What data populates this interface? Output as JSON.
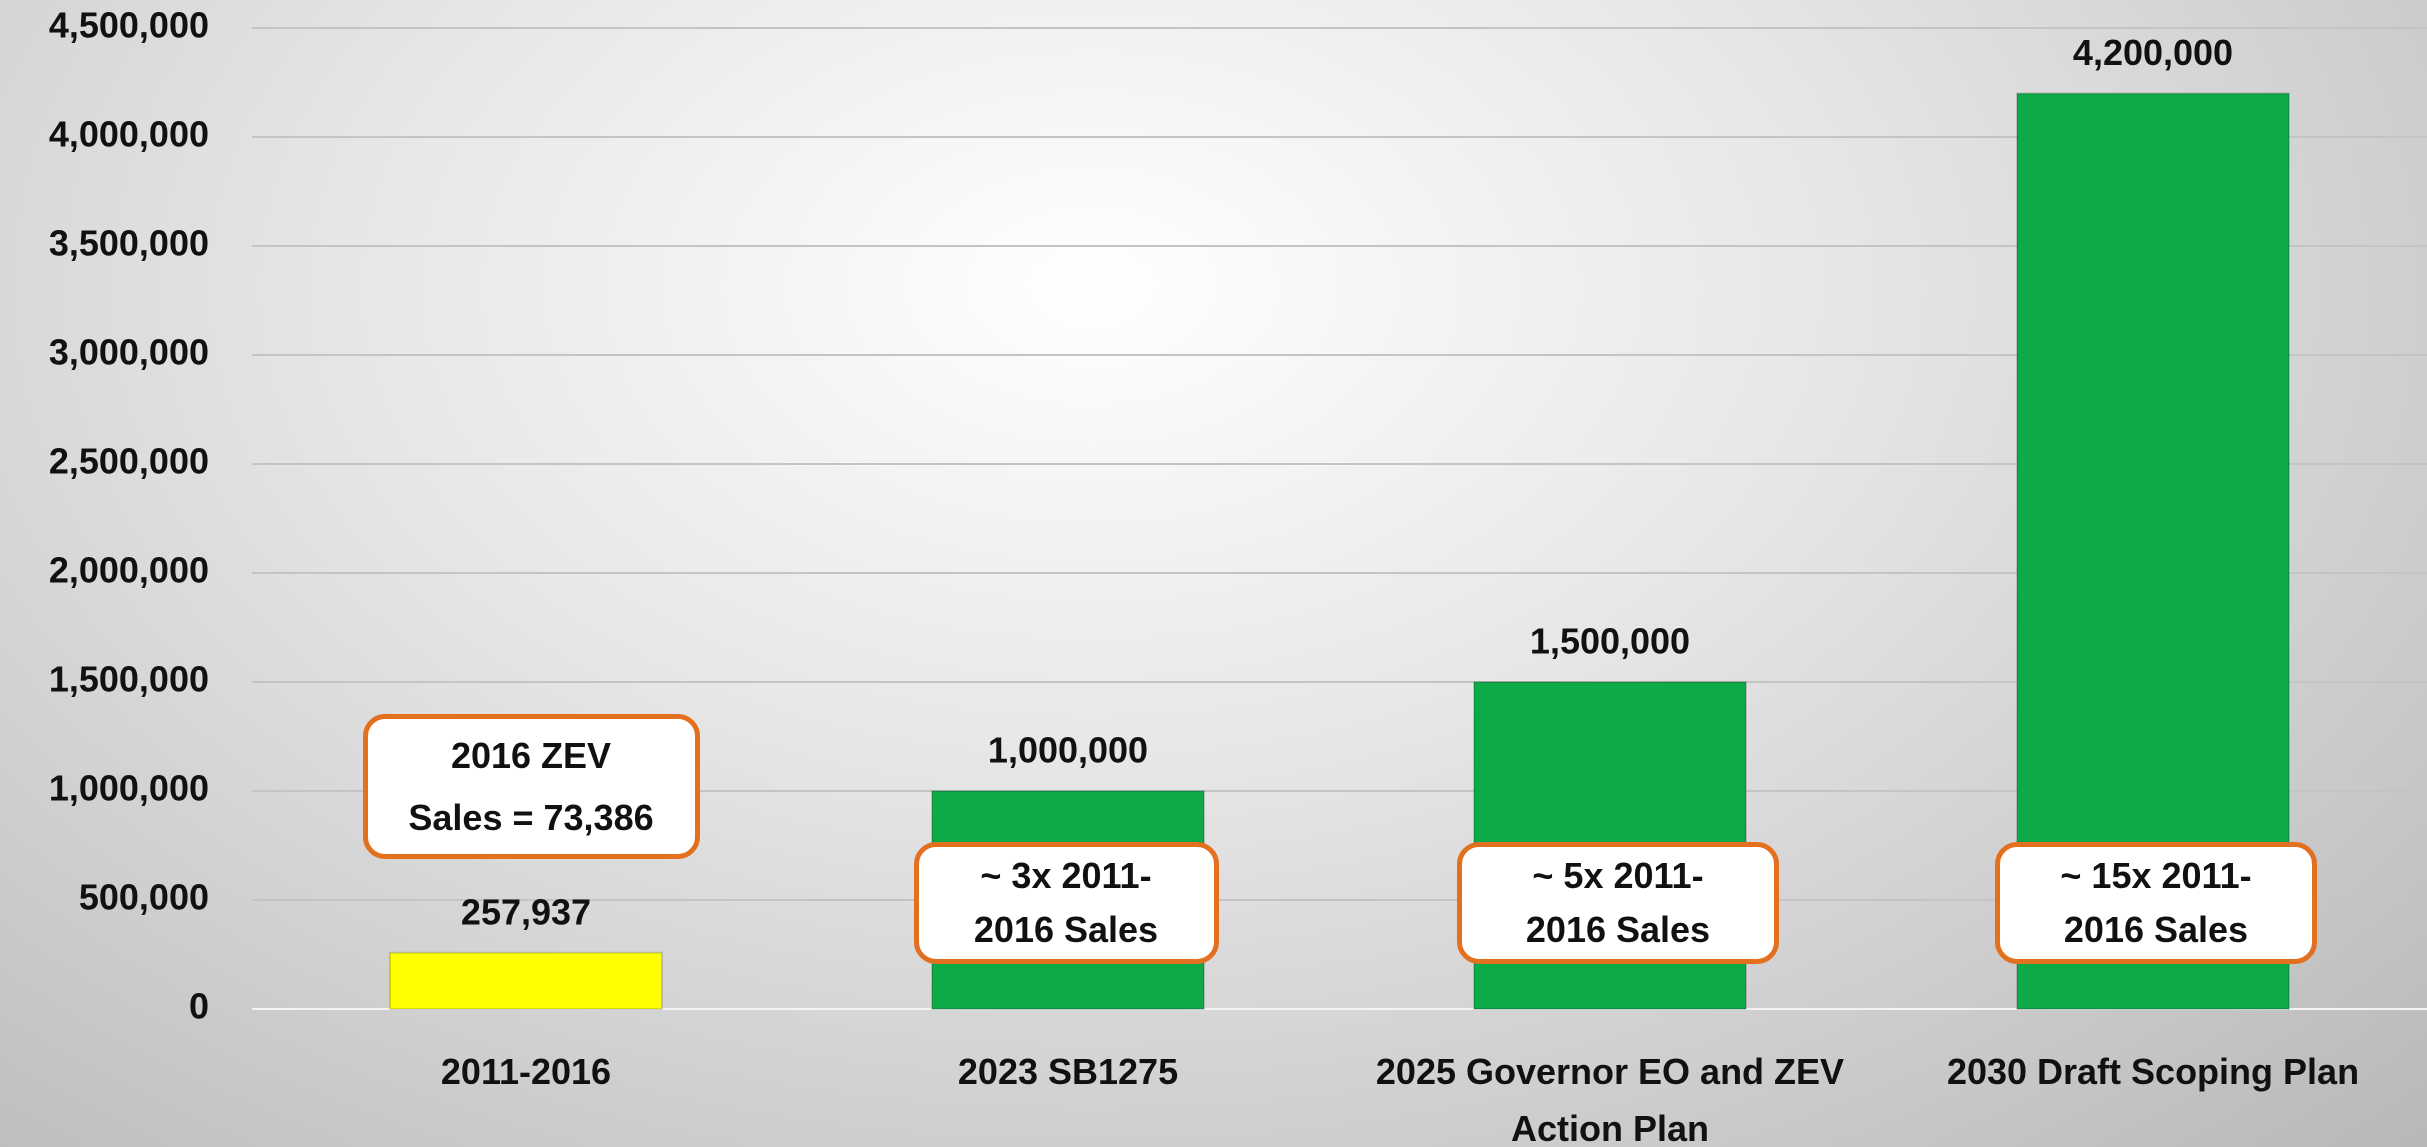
{
  "chart_data": {
    "type": "bar",
    "categories": [
      "2011-2016",
      "2023 SB1275",
      "2025 Governor EO and ZEV Action Plan",
      "2030 Draft Scoping Plan"
    ],
    "values": [
      257937,
      1000000,
      1500000,
      4200000
    ],
    "value_labels": [
      "257,937",
      "1,000,000",
      "1,500,000",
      "4,200,000"
    ],
    "colors": [
      "#ffff00",
      "#0daa48",
      "#0daa48",
      "#0daa48"
    ],
    "ylim": [
      0,
      4500000
    ],
    "yticks": [
      0,
      {
        "value": 500000,
        "label": "500,000"
      },
      {
        "value": 1000000,
        "label": "1,000,000"
      },
      {
        "value": 1500000,
        "label": "1,500,000"
      },
      {
        "value": 2000000,
        "label": "2,000,000"
      },
      {
        "value": 2500000,
        "label": "2,500,000"
      },
      {
        "value": 3000000,
        "label": "3,000,000"
      },
      {
        "value": 3500000,
        "label": "3,500,000"
      },
      {
        "value": 4000000,
        "label": "4,000,000"
      },
      {
        "value": 4500000,
        "label": "4,500,000"
      }
    ],
    "grid": true,
    "annotations": [
      [
        "2016 ZEV",
        "Sales = 73,386"
      ],
      [
        "~ 3x 2011-",
        "2016 Sales"
      ],
      [
        "~ 5x 2011-",
        "2016 Sales"
      ],
      [
        "~ 15x 2011-",
        "2016 Sales"
      ]
    ]
  }
}
